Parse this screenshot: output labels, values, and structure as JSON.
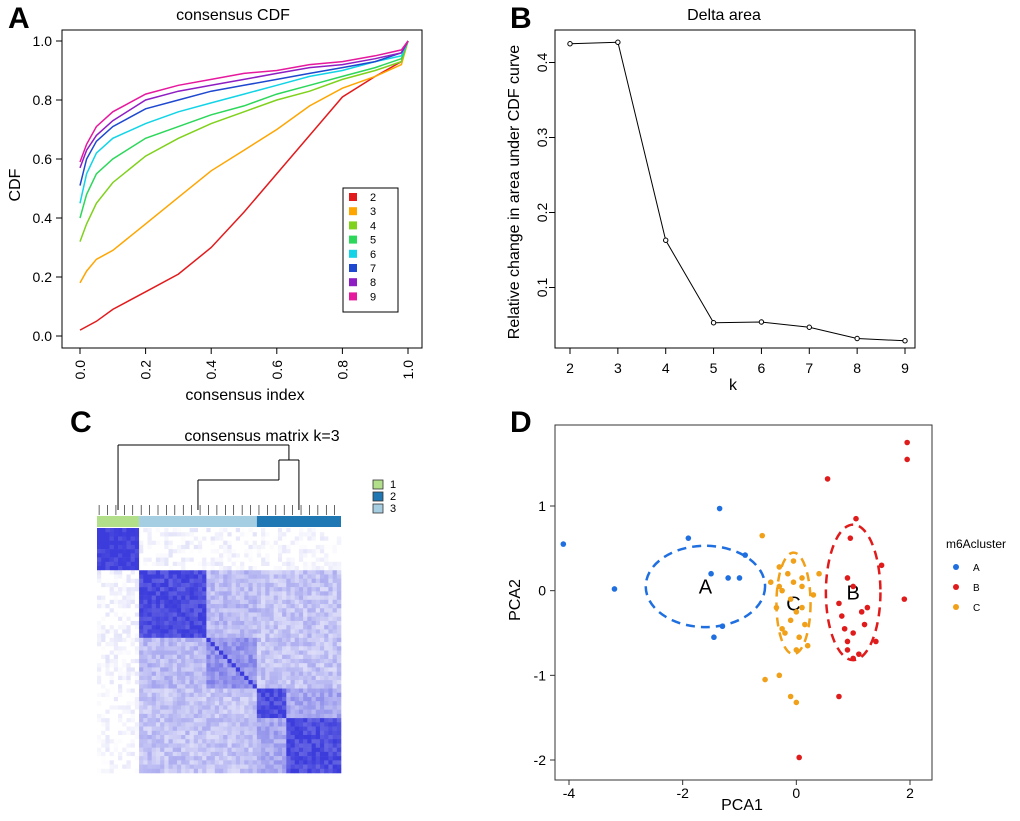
{
  "panels": {
    "A": {
      "letter": "A",
      "chart_data": {
        "type": "line",
        "title": "consensus CDF",
        "xlabel": "consensus index",
        "ylabel": "CDF",
        "xlim": [
          0,
          1
        ],
        "ylim": [
          0,
          1
        ],
        "xticks": [
          "0.0",
          "0.2",
          "0.4",
          "0.6",
          "0.8",
          "1.0"
        ],
        "yticks": [
          "0.0",
          "0.2",
          "0.4",
          "0.6",
          "0.8",
          "1.0"
        ],
        "legend": "right",
        "series": [
          {
            "name": "2",
            "color": "#e31a1c",
            "x": [
              0,
              0.05,
              0.1,
              0.2,
              0.3,
              0.4,
              0.5,
              0.6,
              0.7,
              0.8,
              0.9,
              0.98,
              1.0
            ],
            "y": [
              0.02,
              0.05,
              0.09,
              0.15,
              0.21,
              0.3,
              0.42,
              0.55,
              0.68,
              0.81,
              0.88,
              0.93,
              1.0
            ]
          },
          {
            "name": "3",
            "color": "#ffa500",
            "x": [
              0,
              0.02,
              0.05,
              0.1,
              0.2,
              0.3,
              0.4,
              0.5,
              0.6,
              0.7,
              0.8,
              0.9,
              0.98,
              1.0
            ],
            "y": [
              0.18,
              0.22,
              0.26,
              0.29,
              0.38,
              0.47,
              0.56,
              0.63,
              0.7,
              0.78,
              0.84,
              0.88,
              0.92,
              1.0
            ]
          },
          {
            "name": "4",
            "color": "#7fd11b",
            "x": [
              0,
              0.02,
              0.05,
              0.1,
              0.2,
              0.3,
              0.4,
              0.5,
              0.6,
              0.7,
              0.8,
              0.9,
              0.98,
              1.0
            ],
            "y": [
              0.32,
              0.38,
              0.45,
              0.52,
              0.61,
              0.67,
              0.72,
              0.76,
              0.8,
              0.83,
              0.87,
              0.9,
              0.93,
              1.0
            ]
          },
          {
            "name": "5",
            "color": "#2cd75a",
            "x": [
              0,
              0.02,
              0.05,
              0.1,
              0.2,
              0.3,
              0.4,
              0.5,
              0.6,
              0.7,
              0.8,
              0.9,
              0.98,
              1.0
            ],
            "y": [
              0.4,
              0.48,
              0.55,
              0.6,
              0.67,
              0.71,
              0.75,
              0.78,
              0.82,
              0.85,
              0.88,
              0.91,
              0.94,
              1.0
            ]
          },
          {
            "name": "6",
            "color": "#12d4e6",
            "x": [
              0,
              0.02,
              0.05,
              0.1,
              0.2,
              0.3,
              0.4,
              0.5,
              0.6,
              0.7,
              0.8,
              0.9,
              0.98,
              1.0
            ],
            "y": [
              0.45,
              0.55,
              0.62,
              0.67,
              0.72,
              0.76,
              0.79,
              0.82,
              0.85,
              0.88,
              0.9,
              0.93,
              0.95,
              1.0
            ]
          },
          {
            "name": "7",
            "color": "#1e48cf",
            "x": [
              0,
              0.02,
              0.05,
              0.1,
              0.2,
              0.3,
              0.4,
              0.5,
              0.6,
              0.7,
              0.8,
              0.9,
              0.98,
              1.0
            ],
            "y": [
              0.51,
              0.6,
              0.66,
              0.71,
              0.77,
              0.8,
              0.83,
              0.85,
              0.87,
              0.89,
              0.91,
              0.93,
              0.96,
              1.0
            ]
          },
          {
            "name": "8",
            "color": "#8e1ec4",
            "x": [
              0,
              0.02,
              0.05,
              0.1,
              0.2,
              0.3,
              0.4,
              0.5,
              0.6,
              0.7,
              0.8,
              0.9,
              0.98,
              1.0
            ],
            "y": [
              0.57,
              0.63,
              0.68,
              0.73,
              0.8,
              0.83,
              0.85,
              0.87,
              0.89,
              0.91,
              0.92,
              0.94,
              0.96,
              1.0
            ]
          },
          {
            "name": "9",
            "color": "#e6199e",
            "x": [
              0,
              0.02,
              0.05,
              0.1,
              0.2,
              0.3,
              0.4,
              0.5,
              0.6,
              0.7,
              0.8,
              0.9,
              0.98,
              1.0
            ],
            "y": [
              0.59,
              0.65,
              0.71,
              0.76,
              0.82,
              0.85,
              0.87,
              0.89,
              0.9,
              0.92,
              0.93,
              0.95,
              0.97,
              1.0
            ]
          }
        ]
      }
    },
    "B": {
      "letter": "B",
      "chart_data": {
        "type": "line",
        "title": "Delta area",
        "xlabel": "k",
        "ylabel": "Relative change in area under CDF curve",
        "xlim": [
          2,
          9
        ],
        "ylim": [
          0.03,
          0.43
        ],
        "xticks": [
          "2",
          "3",
          "4",
          "5",
          "6",
          "7",
          "8",
          "9"
        ],
        "yticks": [
          "0.1",
          "0.2",
          "0.3",
          "0.4"
        ],
        "x": [
          2,
          3,
          4,
          5,
          6,
          7,
          8,
          9
        ],
        "y": [
          0.425,
          0.427,
          0.163,
          0.053,
          0.054,
          0.047,
          0.032,
          0.029
        ]
      }
    },
    "C": {
      "letter": "C",
      "chart_data": {
        "type": "heatmap",
        "title": "consensus matrix k=3",
        "legend": [
          "1",
          "2",
          "3"
        ],
        "legend_colors": [
          "#b2df8a",
          "#1f78b4",
          "#a6cee3"
        ],
        "cluster_order": [
          "1",
          "3",
          "2"
        ],
        "cluster_sizes": [
          10,
          28,
          20
        ],
        "block_values": [
          [
            1.0,
            0.02,
            0.0
          ],
          [
            0.02,
            0.55,
            0.3
          ],
          [
            0.0,
            0.3,
            0.8
          ]
        ]
      }
    },
    "D": {
      "letter": "D",
      "chart_data": {
        "type": "scatter",
        "xlabel": "PCA1",
        "ylabel": "PCA2",
        "xlim": [
          -4.3,
          2.3
        ],
        "ylim": [
          -2.1,
          1.9
        ],
        "xticks": [
          "-4",
          "-2",
          "0",
          "2"
        ],
        "yticks": [
          "-2",
          "-1",
          "0",
          "1"
        ],
        "legend_title": "m6Acluster",
        "series": [
          {
            "name": "A",
            "color": "#1f6fe0",
            "x": [
              -4.1,
              -3.2,
              -1.9,
              -1.35,
              -1.5,
              -1.2,
              -1.3,
              -1.0,
              -0.9,
              -1.45
            ],
            "y": [
              0.55,
              0.02,
              0.62,
              0.97,
              0.2,
              0.15,
              -0.42,
              0.15,
              0.42,
              -0.55
            ]
          },
          {
            "name": "B",
            "color": "#e01b1b",
            "x": [
              1.95,
              1.95,
              0.55,
              1.05,
              0.95,
              1.5,
              0.9,
              1.0,
              0.75,
              0.8,
              1.15,
              1.2,
              1.25,
              1.0,
              0.9,
              0.85,
              1.1,
              1.4,
              1.9,
              0.75,
              1.0,
              0.9,
              0.05
            ],
            "y": [
              1.75,
              1.55,
              1.32,
              0.85,
              0.62,
              0.3,
              0.15,
              0.05,
              -0.15,
              -0.3,
              -0.25,
              -0.4,
              -0.2,
              -0.5,
              -0.6,
              -0.45,
              -0.75,
              -0.6,
              -0.1,
              -1.25,
              -0.8,
              -0.7,
              -1.97
            ]
          },
          {
            "name": "C",
            "color": "#f0a019",
            "x": [
              -0.3,
              -0.45,
              -0.25,
              -0.15,
              -0.05,
              0.1,
              -0.1,
              0.0,
              0.15,
              0.3,
              -0.2,
              0.05,
              0.2,
              -0.3,
              -0.05,
              0.1,
              -0.1,
              0.4,
              -0.35,
              0.0,
              0.1,
              -0.3,
              -0.55,
              0.0,
              -0.1,
              -0.25,
              -0.6
            ],
            "y": [
              0.28,
              0.1,
              0.0,
              0.2,
              0.35,
              0.05,
              -0.1,
              -0.25,
              -0.4,
              -0.05,
              -0.5,
              -0.55,
              -0.65,
              0.05,
              0.1,
              0.15,
              -0.35,
              0.2,
              -0.2,
              -0.7,
              -0.2,
              -1.0,
              -1.05,
              -1.32,
              -1.25,
              -0.45,
              0.65
            ]
          }
        ],
        "ellipses": [
          {
            "label": "A",
            "color": "#1f6fe0",
            "cx": -1.6,
            "cy": 0.05,
            "rx": 1.05,
            "ry": 0.48
          },
          {
            "label": "C",
            "color": "#f0a019",
            "cx": -0.05,
            "cy": -0.15,
            "rx": 0.3,
            "ry": 0.6
          },
          {
            "label": "B",
            "color": "#e01b1b",
            "cx": 1.0,
            "cy": -0.02,
            "rx": 0.48,
            "ry": 0.8
          }
        ]
      }
    }
  }
}
